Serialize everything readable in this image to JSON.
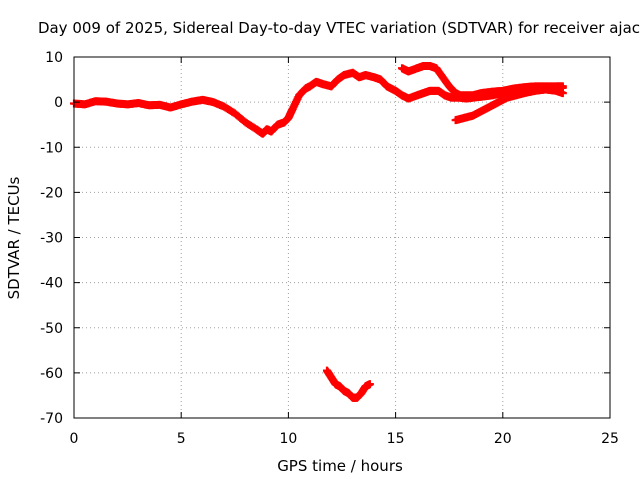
{
  "chart_data": {
    "type": "scatter",
    "title": "Day 009 of 2025, Sidereal Day-to-day VTEC variation (SDTVAR) for receiver ajac",
    "xlabel": "GPS time / hours",
    "ylabel": "SDTVAR / TECUs",
    "xlim": [
      0,
      25
    ],
    "ylim": [
      -70,
      10
    ],
    "xticks": [
      0,
      5,
      10,
      15,
      20,
      25
    ],
    "yticks": [
      -70,
      -60,
      -50,
      -40,
      -30,
      -20,
      -10,
      0,
      10
    ],
    "grid": true,
    "marker_color": "#ff0000",
    "series": [
      {
        "name": "main-track",
        "points": [
          [
            0.0,
            -0.3
          ],
          [
            0.5,
            -0.5
          ],
          [
            1.0,
            0.2
          ],
          [
            1.5,
            0.1
          ],
          [
            2.0,
            -0.3
          ],
          [
            2.5,
            -0.5
          ],
          [
            3.0,
            -0.2
          ],
          [
            3.5,
            -0.7
          ],
          [
            4.0,
            -0.6
          ],
          [
            4.5,
            -1.2
          ],
          [
            5.0,
            -0.5
          ],
          [
            5.5,
            0.1
          ],
          [
            6.0,
            0.5
          ],
          [
            6.5,
            0.0
          ],
          [
            7.0,
            -1.0
          ],
          [
            7.5,
            -2.5
          ],
          [
            8.0,
            -4.5
          ],
          [
            8.5,
            -6.0
          ],
          [
            8.8,
            -7.0
          ],
          [
            9.0,
            -6.0
          ],
          [
            9.2,
            -6.5
          ],
          [
            9.5,
            -5.0
          ],
          [
            9.8,
            -4.5
          ],
          [
            10.0,
            -3.5
          ],
          [
            10.2,
            -1.5
          ],
          [
            10.5,
            1.5
          ],
          [
            10.8,
            3.0
          ],
          [
            11.0,
            3.5
          ],
          [
            11.3,
            4.5
          ],
          [
            11.6,
            4.0
          ],
          [
            12.0,
            3.5
          ],
          [
            12.3,
            5.0
          ],
          [
            12.6,
            6.0
          ],
          [
            13.0,
            6.5
          ],
          [
            13.3,
            5.5
          ],
          [
            13.6,
            6.0
          ],
          [
            14.0,
            5.5
          ],
          [
            14.3,
            5.0
          ],
          [
            14.6,
            3.5
          ],
          [
            15.0,
            2.5
          ],
          [
            15.3,
            1.5
          ],
          [
            15.6,
            0.8
          ],
          [
            16.0,
            1.5
          ],
          [
            16.3,
            2.0
          ],
          [
            16.6,
            2.5
          ],
          [
            17.0,
            2.5
          ],
          [
            17.3,
            1.5
          ],
          [
            17.6,
            1.0
          ],
          [
            18.0,
            1.0
          ],
          [
            18.3,
            0.8
          ],
          [
            18.6,
            1.0
          ],
          [
            19.0,
            1.2
          ],
          [
            19.5,
            1.5
          ],
          [
            20.0,
            2.0
          ],
          [
            20.5,
            2.5
          ],
          [
            21.0,
            2.8
          ],
          [
            21.5,
            3.0
          ],
          [
            22.0,
            3.0
          ],
          [
            22.5,
            3.0
          ],
          [
            22.8,
            3.2
          ]
        ]
      },
      {
        "name": "upper-loop",
        "points": [
          [
            15.3,
            7.5
          ],
          [
            15.6,
            6.8
          ],
          [
            16.0,
            7.5
          ],
          [
            16.3,
            8.0
          ],
          [
            16.6,
            8.0
          ],
          [
            16.9,
            7.5
          ],
          [
            17.2,
            5.5
          ],
          [
            17.5,
            3.5
          ],
          [
            17.8,
            2.0
          ],
          [
            18.0,
            1.5
          ],
          [
            18.3,
            1.5
          ],
          [
            18.6,
            1.5
          ],
          [
            19.0,
            2.0
          ],
          [
            19.5,
            2.3
          ],
          [
            20.0,
            2.5
          ],
          [
            20.5,
            3.0
          ],
          [
            21.0,
            3.3
          ],
          [
            21.5,
            3.5
          ],
          [
            22.0,
            3.5
          ],
          [
            22.5,
            3.5
          ],
          [
            22.8,
            3.5
          ]
        ]
      },
      {
        "name": "lower-branch",
        "points": [
          [
            17.8,
            -4.0
          ],
          [
            18.2,
            -3.5
          ],
          [
            18.6,
            -3.0
          ],
          [
            19.0,
            -2.0
          ],
          [
            19.4,
            -1.0
          ],
          [
            19.8,
            0.0
          ],
          [
            20.2,
            1.0
          ],
          [
            20.6,
            1.5
          ],
          [
            21.0,
            2.0
          ],
          [
            21.5,
            2.5
          ],
          [
            22.0,
            2.8
          ],
          [
            22.5,
            2.5
          ],
          [
            22.8,
            2.0
          ]
        ]
      },
      {
        "name": "negative-arc",
        "points": [
          [
            11.8,
            -59.5
          ],
          [
            12.0,
            -61.0
          ],
          [
            12.2,
            -62.5
          ],
          [
            12.4,
            -63.0
          ],
          [
            12.6,
            -64.0
          ],
          [
            12.8,
            -64.5
          ],
          [
            13.0,
            -65.5
          ],
          [
            13.2,
            -65.5
          ],
          [
            13.4,
            -64.5
          ],
          [
            13.6,
            -63.0
          ],
          [
            13.8,
            -62.5
          ]
        ]
      }
    ]
  }
}
